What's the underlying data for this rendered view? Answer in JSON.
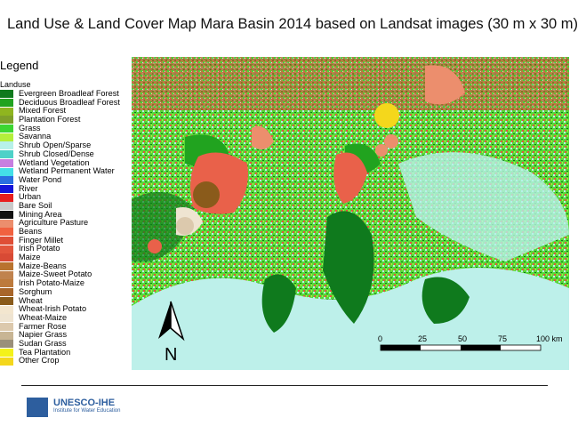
{
  "title": "Land Use & Land Cover Map Mara Basin 2014 based on Landsat images  (30 m x 30 m)",
  "legend": {
    "heading": "Legend",
    "subheading": "Landuse",
    "items": [
      {
        "label": "Evergreen Broadleaf Forest",
        "color": "#0f7a1d"
      },
      {
        "label": "Deciduous Broadleaf Forest",
        "color": "#21a31f"
      },
      {
        "label": "Mixed Forest",
        "color": "#8fb51f"
      },
      {
        "label": "Plantation Forest",
        "color": "#7e9f2a"
      },
      {
        "label": "Grass",
        "color": "#3cd632"
      },
      {
        "label": "Savanna",
        "color": "#b3ef3b"
      },
      {
        "label": "Shrub Open/Sparse",
        "color": "#b7f1e9"
      },
      {
        "label": "Shrub Closed/Dense",
        "color": "#4ed1c8"
      },
      {
        "label": "Wetland Vegetation",
        "color": "#c77fe0"
      },
      {
        "label": "Wetland Permanent Water",
        "color": "#44dfe8"
      },
      {
        "label": "Water Pond",
        "color": "#2a6fe0"
      },
      {
        "label": "River",
        "color": "#1414d9"
      },
      {
        "label": "Urban",
        "color": "#e81d1d"
      },
      {
        "label": "Bare Soil",
        "color": "#c9c9c9"
      },
      {
        "label": "Mining Area",
        "color": "#111111"
      },
      {
        "label": "Agriculture Pasture",
        "color": "#ec8e6d"
      },
      {
        "label": "Beans",
        "color": "#f1613f"
      },
      {
        "label": "Finger Millet",
        "color": "#df4e36"
      },
      {
        "label": "Irish Potato",
        "color": "#e2553c"
      },
      {
        "label": "Maize",
        "color": "#d84a35"
      },
      {
        "label": "Maize-Beans",
        "color": "#b9732f"
      },
      {
        "label": "Maize-Sweet Potato",
        "color": "#c0834e"
      },
      {
        "label": "Irish Potato-Maize",
        "color": "#bd7a3c"
      },
      {
        "label": "Sorghum",
        "color": "#a8662a"
      },
      {
        "label": "Wheat",
        "color": "#8a5b1b"
      },
      {
        "label": "Wheat-Irish Potato",
        "color": "#f3e6cf"
      },
      {
        "label": "Wheat-Maize",
        "color": "#efe4d1"
      },
      {
        "label": "Farmer Rose",
        "color": "#dcc9ad"
      },
      {
        "label": "Napier Grass",
        "color": "#c8b594"
      },
      {
        "label": "Sudan Grass",
        "color": "#9a8f7a"
      },
      {
        "label": "Tea Plantation",
        "color": "#f4f21a"
      },
      {
        "label": "Other Crop",
        "color": "#f4d71c"
      }
    ]
  },
  "north_arrow": {
    "label": "N"
  },
  "scale_bar": {
    "ticks": [
      "0",
      "25",
      "50",
      "75",
      "100 km"
    ]
  },
  "logo": {
    "name": "UNESCO-IHE",
    "subtitle": "Institute for Water Education"
  }
}
